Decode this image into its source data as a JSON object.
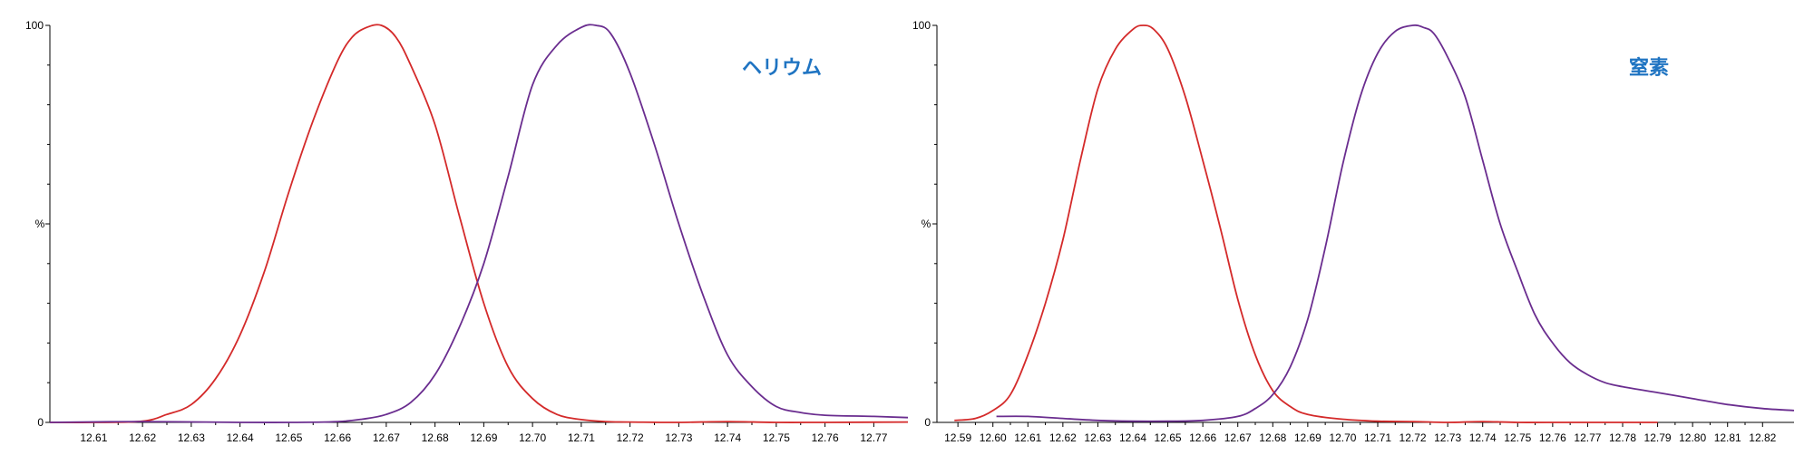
{
  "charts": [
    {
      "name": "left",
      "annotation": "ヘリウム",
      "ylabel": "%",
      "ytick_labels": [
        "0",
        "100"
      ],
      "xticks": [
        "12.61",
        "12.62",
        "12.63",
        "12.64",
        "12.65",
        "12.66",
        "12.67",
        "12.68",
        "12.69",
        "12.70",
        "12.71",
        "12.72",
        "12.73",
        "12.74",
        "12.75",
        "12.76",
        "12.77"
      ]
    },
    {
      "name": "right",
      "annotation": "窒素",
      "ylabel": "%",
      "ytick_labels": [
        "0",
        "100"
      ],
      "xticks": [
        "12.59",
        "12.60",
        "12.61",
        "12.62",
        "12.63",
        "12.64",
        "12.65",
        "12.66",
        "12.67",
        "12.68",
        "12.69",
        "12.70",
        "12.71",
        "12.72",
        "12.73",
        "12.74",
        "12.75",
        "12.76",
        "12.77",
        "12.78",
        "12.79",
        "12.80",
        "12.81",
        "12.82"
      ]
    }
  ],
  "colors": {
    "red_series": "#d42a2a",
    "purple_series": "#6a2d8f",
    "annotation": "#1f74c2"
  },
  "chart_data": [
    {
      "type": "line",
      "title": "",
      "xlabel": "",
      "ylabel": "%",
      "xlim": [
        12.601,
        12.777
      ],
      "ylim": [
        0,
        100
      ],
      "grid": false,
      "annotation": "ヘリウム",
      "series": [
        {
          "color": "#d42a2a",
          "x": [
            12.601,
            12.61,
            12.62,
            12.625,
            12.63,
            12.635,
            12.64,
            12.645,
            12.65,
            12.655,
            12.66,
            12.663,
            12.666,
            12.669,
            12.672,
            12.675,
            12.68,
            12.685,
            12.69,
            12.695,
            12.7,
            12.705,
            12.71,
            12.715,
            12.72,
            12.73,
            12.74,
            12.75,
            12.76,
            12.777
          ],
          "y": [
            0,
            0,
            0.3,
            2,
            4.5,
            11,
            22,
            38,
            58,
            76,
            91,
            97,
            99.5,
            100,
            97,
            90,
            75,
            52,
            30,
            14,
            6,
            2,
            0.7,
            0.2,
            0.1,
            0,
            0.2,
            0,
            0,
            0.1
          ]
        },
        {
          "color": "#6a2d8f",
          "x": [
            12.601,
            12.62,
            12.64,
            12.65,
            12.66,
            12.665,
            12.67,
            12.675,
            12.68,
            12.685,
            12.69,
            12.695,
            12.7,
            12.705,
            12.71,
            12.713,
            12.716,
            12.72,
            12.725,
            12.73,
            12.735,
            12.74,
            12.745,
            12.75,
            12.755,
            12.76,
            12.77,
            12.777
          ],
          "y": [
            0,
            0.2,
            0,
            0,
            0.2,
            0.8,
            2,
            5,
            12,
            24,
            40,
            62,
            85,
            95,
            99.5,
            100,
            98,
            88,
            70,
            50,
            32,
            17,
            9,
            4,
            2.5,
            1.8,
            1.5,
            1.2
          ]
        }
      ]
    },
    {
      "type": "line",
      "title": "",
      "xlabel": "",
      "ylabel": "%",
      "xlim": [
        12.584,
        12.829
      ],
      "ylim": [
        0,
        100
      ],
      "grid": false,
      "annotation": "窒素",
      "series": [
        {
          "color": "#d42a2a",
          "x": [
            12.589,
            12.595,
            12.6,
            12.605,
            12.61,
            12.615,
            12.62,
            12.625,
            12.63,
            12.635,
            12.64,
            12.643,
            12.646,
            12.65,
            12.655,
            12.66,
            12.665,
            12.67,
            12.675,
            12.68,
            12.685,
            12.69,
            12.7,
            12.71,
            12.72,
            12.73,
            12.74,
            12.75,
            12.76,
            12.79
          ],
          "y": [
            0.5,
            1,
            3,
            7,
            17,
            30,
            46,
            66,
            84,
            94,
            99,
            100,
            99,
            94,
            82,
            66,
            49,
            31,
            17,
            8,
            4,
            2,
            0.8,
            0.3,
            0.2,
            0,
            0.2,
            0,
            0,
            0
          ]
        },
        {
          "color": "#6a2d8f",
          "x": [
            12.601,
            12.61,
            12.62,
            12.63,
            12.64,
            12.65,
            12.66,
            12.67,
            12.675,
            12.68,
            12.685,
            12.69,
            12.695,
            12.7,
            12.705,
            12.71,
            12.715,
            12.72,
            12.723,
            12.726,
            12.73,
            12.735,
            12.74,
            12.745,
            12.75,
            12.755,
            12.76,
            12.765,
            12.77,
            12.775,
            12.78,
            12.79,
            12.8,
            12.81,
            12.82,
            12.829
          ],
          "y": [
            1.5,
            1.5,
            1,
            0.5,
            0.3,
            0.3,
            0.5,
            1.5,
            3.5,
            7,
            14,
            26,
            44,
            65,
            82,
            93,
            98.5,
            100,
            99.5,
            98,
            92,
            82,
            66,
            50,
            38,
            27,
            20,
            15,
            12,
            10,
            9,
            7.5,
            6,
            4.5,
            3.5,
            3
          ]
        }
      ]
    }
  ]
}
